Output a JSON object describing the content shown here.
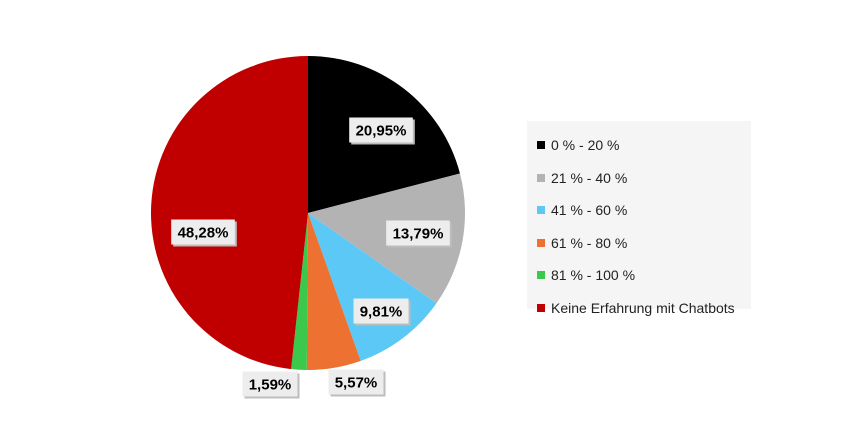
{
  "chart_data": {
    "type": "pie",
    "title": "",
    "categories": [
      "0 % - 20 %",
      "21 % - 40 %",
      "41 % - 60 %",
      "61 % - 80 %",
      "81 % - 100 %",
      "Keine Erfahrung mit Chatbots"
    ],
    "values": [
      20.95,
      13.79,
      9.81,
      5.57,
      1.59,
      48.28
    ],
    "value_labels": [
      "20,95%",
      "13,79%",
      "9,81%",
      "5,57%",
      "1,59%",
      "48,28%"
    ],
    "colors": [
      "#000000",
      "#b3b3b3",
      "#5bc8f5",
      "#ed7130",
      "#3cc84a",
      "#c00000"
    ],
    "legend_position": "right",
    "start_angle_deg": 0,
    "direction": "clockwise"
  }
}
